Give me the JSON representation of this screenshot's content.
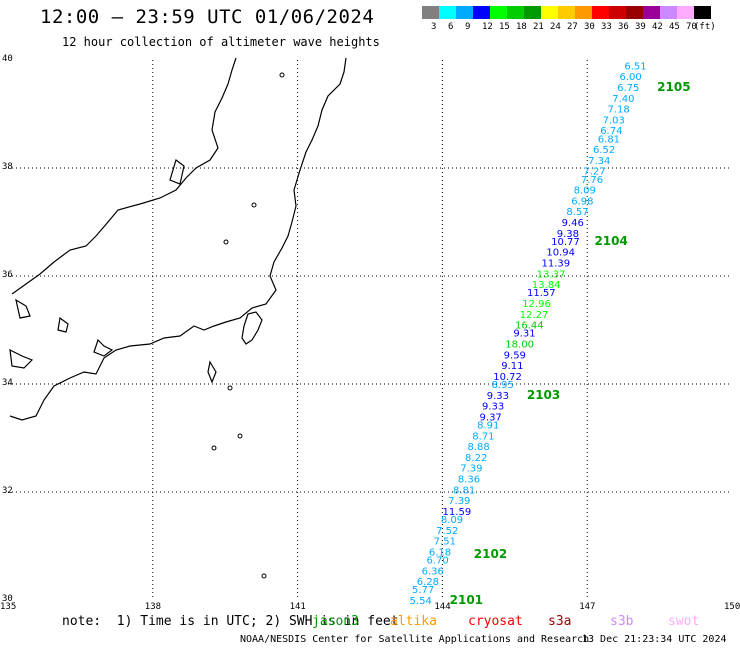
{
  "title": "12:00 — 23:59 UTC 01/06/2024",
  "subtitle": "12 hour collection of altimeter wave heights",
  "colorbar": {
    "colors": [
      "#808080",
      "#00ffff",
      "#00aaff",
      "#0000ff",
      "#00ff00",
      "#00cc00",
      "#009900",
      "#ffff00",
      "#ffcc00",
      "#ff9900",
      "#ff0000",
      "#cc0000",
      "#990000",
      "#990099",
      "#cc88ff",
      "#ffaaff",
      "#000000"
    ],
    "labels": [
      "3",
      "6",
      "9",
      "12",
      "15",
      "18",
      "21",
      "24",
      "27",
      "30",
      "33",
      "36",
      "39",
      "42",
      "45",
      "70",
      "(ft)"
    ]
  },
  "axes": {
    "lat_labels": [
      "40",
      "38",
      "36",
      "34",
      "32",
      "30"
    ],
    "lon_labels": [
      "135",
      "138",
      "141",
      "144",
      "147",
      "150"
    ]
  },
  "track": {
    "observations": [
      {
        "lat": 39.9,
        "lon": 148.0,
        "v": "6.51",
        "c": "#00aaff"
      },
      {
        "lat": 39.7,
        "lon": 147.9,
        "v": "6.00",
        "c": "#00aaff"
      },
      {
        "lat": 39.5,
        "lon": 147.85,
        "v": "6.75",
        "c": "#00aaff"
      },
      {
        "lat": 39.3,
        "lon": 147.75,
        "v": "7.40",
        "c": "#00aaff"
      },
      {
        "lat": 39.1,
        "lon": 147.65,
        "v": "7.18",
        "c": "#00aaff"
      },
      {
        "lat": 38.9,
        "lon": 147.55,
        "v": "7.03",
        "c": "#00aaff"
      },
      {
        "lat": 38.7,
        "lon": 147.5,
        "v": "6.74",
        "c": "#00aaff"
      },
      {
        "lat": 38.55,
        "lon": 147.45,
        "v": "6.81",
        "c": "#00aaff"
      },
      {
        "lat": 38.35,
        "lon": 147.35,
        "v": "6.52",
        "c": "#00aaff"
      },
      {
        "lat": 38.15,
        "lon": 147.25,
        "v": "7.34",
        "c": "#00aaff"
      },
      {
        "lat": 37.95,
        "lon": 147.15,
        "v": "7.27",
        "c": "#00aaff"
      },
      {
        "lat": 37.8,
        "lon": 147.1,
        "v": "7.76",
        "c": "#00aaff"
      },
      {
        "lat": 37.6,
        "lon": 146.95,
        "v": "8.09",
        "c": "#00aaff"
      },
      {
        "lat": 37.4,
        "lon": 146.9,
        "v": "6.98",
        "c": "#00aaff"
      },
      {
        "lat": 37.2,
        "lon": 146.8,
        "v": "8.57",
        "c": "#00aaff"
      },
      {
        "lat": 37.0,
        "lon": 146.7,
        "v": "9.46",
        "c": "#0000ff"
      },
      {
        "lat": 36.8,
        "lon": 146.6,
        "v": "9.38",
        "c": "#0000ff"
      },
      {
        "lat": 36.65,
        "lon": 146.55,
        "v": "10.77",
        "c": "#0000ff"
      },
      {
        "lat": 36.45,
        "lon": 146.45,
        "v": "10.94",
        "c": "#0000ff"
      },
      {
        "lat": 36.25,
        "lon": 146.35,
        "v": "11.39",
        "c": "#0000ff"
      },
      {
        "lat": 36.05,
        "lon": 146.25,
        "v": "13.37",
        "c": "#00ff00"
      },
      {
        "lat": 35.85,
        "lon": 146.15,
        "v": "13.84",
        "c": "#00ff00"
      },
      {
        "lat": 35.7,
        "lon": 146.05,
        "v": "11.57",
        "c": "#0000ff"
      },
      {
        "lat": 35.5,
        "lon": 145.95,
        "v": "12.96",
        "c": "#00ff00"
      },
      {
        "lat": 35.3,
        "lon": 145.9,
        "v": "12.27",
        "c": "#00ff00"
      },
      {
        "lat": 35.1,
        "lon": 145.8,
        "v": "16.44",
        "c": "#00cc00"
      },
      {
        "lat": 34.95,
        "lon": 145.7,
        "v": "9.31",
        "c": "#0000ff"
      },
      {
        "lat": 34.75,
        "lon": 145.6,
        "v": "18.00",
        "c": "#00cc00"
      },
      {
        "lat": 34.55,
        "lon": 145.5,
        "v": "9.59",
        "c": "#0000ff"
      },
      {
        "lat": 34.35,
        "lon": 145.45,
        "v": "9.11",
        "c": "#0000ff"
      },
      {
        "lat": 34.15,
        "lon": 145.35,
        "v": "10.72",
        "c": "#0000ff"
      },
      {
        "lat": 34.0,
        "lon": 145.25,
        "v": "8.95",
        "c": "#00aaff"
      },
      {
        "lat": 33.8,
        "lon": 145.15,
        "v": "9.33",
        "c": "#0000ff"
      },
      {
        "lat": 33.6,
        "lon": 145.05,
        "v": "9.33",
        "c": "#0000ff"
      },
      {
        "lat": 33.4,
        "lon": 145.0,
        "v": "9.37",
        "c": "#0000ff"
      },
      {
        "lat": 33.25,
        "lon": 144.95,
        "v": "8.91",
        "c": "#00aaff"
      },
      {
        "lat": 33.05,
        "lon": 144.85,
        "v": "8.71",
        "c": "#00aaff"
      },
      {
        "lat": 32.85,
        "lon": 144.75,
        "v": "8.88",
        "c": "#00aaff"
      },
      {
        "lat": 32.65,
        "lon": 144.7,
        "v": "8.22",
        "c": "#00aaff"
      },
      {
        "lat": 32.45,
        "lon": 144.6,
        "v": "7.39",
        "c": "#00aaff"
      },
      {
        "lat": 32.25,
        "lon": 144.55,
        "v": "8.36",
        "c": "#00aaff"
      },
      {
        "lat": 32.05,
        "lon": 144.45,
        "v": "8.81",
        "c": "#00aaff"
      },
      {
        "lat": 31.85,
        "lon": 144.35,
        "v": "7.39",
        "c": "#00aaff"
      },
      {
        "lat": 31.65,
        "lon": 144.3,
        "v": "11.59",
        "c": "#0000ff"
      },
      {
        "lat": 31.5,
        "lon": 144.2,
        "v": "8.09",
        "c": "#00aaff"
      },
      {
        "lat": 31.3,
        "lon": 144.1,
        "v": "7.52",
        "c": "#00aaff"
      },
      {
        "lat": 31.1,
        "lon": 144.05,
        "v": "7.51",
        "c": "#00aaff"
      },
      {
        "lat": 30.9,
        "lon": 143.95,
        "v": "6.18",
        "c": "#00aaff"
      },
      {
        "lat": 30.75,
        "lon": 143.9,
        "v": "6.70",
        "c": "#00aaff"
      },
      {
        "lat": 30.55,
        "lon": 143.8,
        "v": "6.36",
        "c": "#00aaff"
      },
      {
        "lat": 30.35,
        "lon": 143.7,
        "v": "6.28",
        "c": "#00aaff"
      },
      {
        "lat": 30.2,
        "lon": 143.6,
        "v": "5.77",
        "c": "#00aaff"
      },
      {
        "lat": 30.0,
        "lon": 143.55,
        "v": "5.54",
        "c": "#00aaff"
      }
    ],
    "pass_labels": [
      {
        "lat": 39.5,
        "lon": 148.45,
        "label": "2105"
      },
      {
        "lat": 36.65,
        "lon": 147.15,
        "label": "2104"
      },
      {
        "lat": 33.8,
        "lon": 145.75,
        "label": "2103"
      },
      {
        "lat": 30.85,
        "lon": 144.65,
        "label": "2102"
      },
      {
        "lat": 30.0,
        "lon": 144.15,
        "label": "2101"
      }
    ]
  },
  "note": "note:  1) Time is in UTC; 2) SWH is in feet",
  "satellites": [
    {
      "name": "jason3",
      "color": "#009900"
    },
    {
      "name": "altika",
      "color": "#ff9900"
    },
    {
      "name": "cryosat",
      "color": "#ff0000"
    },
    {
      "name": "s3a",
      "color": "#990000"
    },
    {
      "name": "s3b",
      "color": "#cc88ff"
    },
    {
      "name": "swot",
      "color": "#ffaaff"
    }
  ],
  "footer": {
    "credit": "NOAA/NESDIS Center for Satellite Applications and Research",
    "timestamp": "13 Dec 21:23:34 UTC 2024"
  }
}
